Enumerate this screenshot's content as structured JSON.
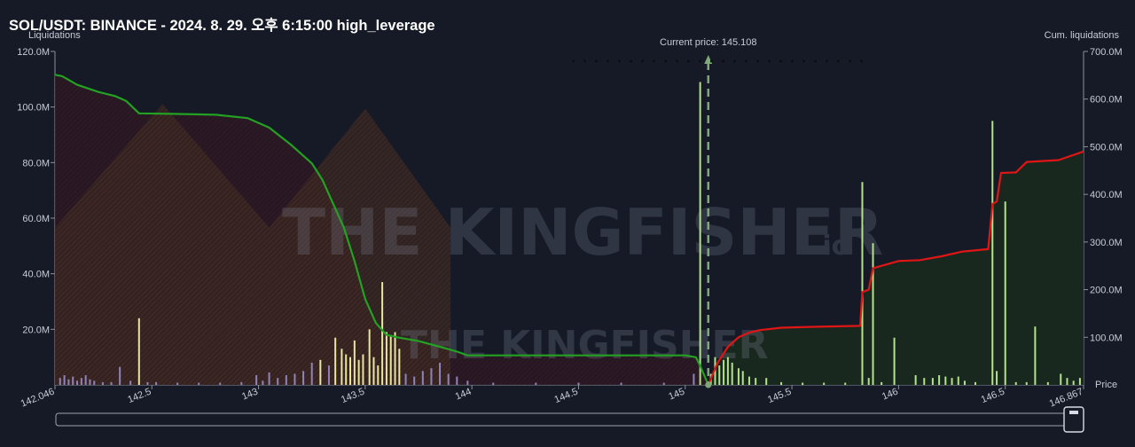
{
  "title": "SOL/USDT: BINANCE - 2024. 8. 29. 오후 6:15:00 high_leverage",
  "watermark": {
    "main": "THE KINGFISHER",
    "suffix": ".io"
  },
  "colors": {
    "background": "#151a26",
    "cum_short_line": "#22a122",
    "cum_long_line": "#e01515",
    "bar_yellow": "#e6e6a0",
    "bar_purple": "#8e84b8",
    "bar_green": "#b4e28a",
    "current_price": "#7fa87a"
  },
  "chart_data": {
    "type": "bar",
    "title": "SOL/USDT: BINANCE - 2024. 8. 29. 오후 6:15:00 high_leverage",
    "xlabel": "Price",
    "ylabel_left": "Liquidations",
    "ylabel_right": "Cum. liquidations",
    "xlim": [
      142.046,
      146.867
    ],
    "x_ticks": [
      "142.046",
      "142.5",
      "143",
      "143.5",
      "144",
      "144.5",
      "145",
      "145.5",
      "146",
      "146.5",
      "146.867"
    ],
    "y_left_ticks": [
      "20.0M",
      "40.0M",
      "60.0M",
      "80.0M",
      "100.0M",
      "120.0M"
    ],
    "y_right_ticks": [
      "100.0M",
      "200.0M",
      "300.0M",
      "400.0M",
      "500.0M",
      "600.0M",
      "700.0M"
    ],
    "ylim_left": [
      0,
      120
    ],
    "ylim_right": [
      0,
      700
    ],
    "current_price": {
      "label": "Current price: 145.108",
      "value": 145.108
    },
    "grid": false,
    "bars": [
      {
        "x": 142.07,
        "value": 2.5,
        "color": "purple"
      },
      {
        "x": 142.09,
        "value": 3.5,
        "color": "purple"
      },
      {
        "x": 142.11,
        "value": 2.0,
        "color": "purple"
      },
      {
        "x": 142.13,
        "value": 3.0,
        "color": "purple"
      },
      {
        "x": 142.15,
        "value": 1.5,
        "color": "purple"
      },
      {
        "x": 142.17,
        "value": 2.5,
        "color": "purple"
      },
      {
        "x": 142.19,
        "value": 3.5,
        "color": "purple"
      },
      {
        "x": 142.21,
        "value": 2.0,
        "color": "purple"
      },
      {
        "x": 142.23,
        "value": 1.5,
        "color": "purple"
      },
      {
        "x": 142.27,
        "value": 1.0,
        "color": "purple"
      },
      {
        "x": 142.31,
        "value": 1.0,
        "color": "purple"
      },
      {
        "x": 142.35,
        "value": 6.5,
        "color": "purple"
      },
      {
        "x": 142.4,
        "value": 1.5,
        "color": "purple"
      },
      {
        "x": 142.44,
        "value": 24.0,
        "color": "yellow"
      },
      {
        "x": 142.48,
        "value": 1.0,
        "color": "purple"
      },
      {
        "x": 142.52,
        "value": 1.0,
        "color": "purple"
      },
      {
        "x": 142.62,
        "value": 0.8,
        "color": "purple"
      },
      {
        "x": 142.72,
        "value": 0.8,
        "color": "purple"
      },
      {
        "x": 142.82,
        "value": 0.8,
        "color": "purple"
      },
      {
        "x": 142.92,
        "value": 1.0,
        "color": "purple"
      },
      {
        "x": 142.99,
        "value": 3.5,
        "color": "purple"
      },
      {
        "x": 143.02,
        "value": 1.5,
        "color": "purple"
      },
      {
        "x": 143.05,
        "value": 4.5,
        "color": "purple"
      },
      {
        "x": 143.09,
        "value": 2.5,
        "color": "purple"
      },
      {
        "x": 143.13,
        "value": 3.5,
        "color": "purple"
      },
      {
        "x": 143.17,
        "value": 4.0,
        "color": "purple"
      },
      {
        "x": 143.21,
        "value": 5.0,
        "color": "purple"
      },
      {
        "x": 143.25,
        "value": 8.0,
        "color": "purple"
      },
      {
        "x": 143.29,
        "value": 9.0,
        "color": "yellow"
      },
      {
        "x": 143.33,
        "value": 7.0,
        "color": "purple"
      },
      {
        "x": 143.36,
        "value": 17.0,
        "color": "yellow"
      },
      {
        "x": 143.39,
        "value": 13.0,
        "color": "yellow"
      },
      {
        "x": 143.41,
        "value": 11.0,
        "color": "yellow"
      },
      {
        "x": 143.43,
        "value": 10.0,
        "color": "yellow"
      },
      {
        "x": 143.45,
        "value": 16.0,
        "color": "yellow"
      },
      {
        "x": 143.47,
        "value": 9.0,
        "color": "yellow"
      },
      {
        "x": 143.49,
        "value": 11.0,
        "color": "yellow"
      },
      {
        "x": 143.52,
        "value": 20.0,
        "color": "yellow"
      },
      {
        "x": 143.54,
        "value": 10.0,
        "color": "yellow"
      },
      {
        "x": 143.56,
        "value": 7.0,
        "color": "yellow"
      },
      {
        "x": 143.58,
        "value": 37.0,
        "color": "yellow"
      },
      {
        "x": 143.6,
        "value": 19.0,
        "color": "yellow"
      },
      {
        "x": 143.62,
        "value": 18.0,
        "color": "yellow"
      },
      {
        "x": 143.64,
        "value": 19.0,
        "color": "yellow"
      },
      {
        "x": 143.66,
        "value": 13.0,
        "color": "yellow"
      },
      {
        "x": 143.69,
        "value": 4.0,
        "color": "purple"
      },
      {
        "x": 143.73,
        "value": 3.0,
        "color": "purple"
      },
      {
        "x": 143.77,
        "value": 5.0,
        "color": "purple"
      },
      {
        "x": 143.81,
        "value": 6.0,
        "color": "purple"
      },
      {
        "x": 143.85,
        "value": 8.0,
        "color": "purple"
      },
      {
        "x": 143.89,
        "value": 4.0,
        "color": "purple"
      },
      {
        "x": 143.93,
        "value": 3.0,
        "color": "purple"
      },
      {
        "x": 143.98,
        "value": 1.5,
        "color": "purple"
      },
      {
        "x": 144.1,
        "value": 0.8,
        "color": "purple"
      },
      {
        "x": 144.3,
        "value": 0.8,
        "color": "purple"
      },
      {
        "x": 144.5,
        "value": 0.8,
        "color": "purple"
      },
      {
        "x": 144.7,
        "value": 0.8,
        "color": "purple"
      },
      {
        "x": 144.9,
        "value": 0.8,
        "color": "purple"
      },
      {
        "x": 145.04,
        "value": 4.0,
        "color": "purple"
      },
      {
        "x": 145.07,
        "value": 109.0,
        "color": "green"
      },
      {
        "x": 145.12,
        "value": 4.0,
        "color": "green"
      },
      {
        "x": 145.14,
        "value": 10.0,
        "color": "green"
      },
      {
        "x": 145.16,
        "value": 7.0,
        "color": "green"
      },
      {
        "x": 145.18,
        "value": 9.0,
        "color": "green"
      },
      {
        "x": 145.2,
        "value": 10.0,
        "color": "green"
      },
      {
        "x": 145.22,
        "value": 8.0,
        "color": "green"
      },
      {
        "x": 145.25,
        "value": 6.0,
        "color": "green"
      },
      {
        "x": 145.27,
        "value": 5.0,
        "color": "green"
      },
      {
        "x": 145.3,
        "value": 3.0,
        "color": "green"
      },
      {
        "x": 145.33,
        "value": 2.5,
        "color": "green"
      },
      {
        "x": 145.38,
        "value": 2.5,
        "color": "green"
      },
      {
        "x": 145.45,
        "value": 1.0,
        "color": "green"
      },
      {
        "x": 145.55,
        "value": 0.8,
        "color": "green"
      },
      {
        "x": 145.65,
        "value": 0.8,
        "color": "green"
      },
      {
        "x": 145.75,
        "value": 0.8,
        "color": "green"
      },
      {
        "x": 145.83,
        "value": 73.0,
        "color": "green"
      },
      {
        "x": 145.86,
        "value": 2.5,
        "color": "green"
      },
      {
        "x": 145.88,
        "value": 51.0,
        "color": "green"
      },
      {
        "x": 145.92,
        "value": 1.0,
        "color": "green"
      },
      {
        "x": 145.98,
        "value": 17.0,
        "color": "green"
      },
      {
        "x": 146.08,
        "value": 3.5,
        "color": "green"
      },
      {
        "x": 146.12,
        "value": 2.5,
        "color": "green"
      },
      {
        "x": 146.16,
        "value": 2.5,
        "color": "green"
      },
      {
        "x": 146.19,
        "value": 3.5,
        "color": "green"
      },
      {
        "x": 146.22,
        "value": 3.0,
        "color": "green"
      },
      {
        "x": 146.25,
        "value": 2.5,
        "color": "green"
      },
      {
        "x": 146.28,
        "value": 3.0,
        "color": "green"
      },
      {
        "x": 146.31,
        "value": 1.5,
        "color": "green"
      },
      {
        "x": 146.36,
        "value": 1.0,
        "color": "green"
      },
      {
        "x": 146.44,
        "value": 95.0,
        "color": "green"
      },
      {
        "x": 146.46,
        "value": 5.0,
        "color": "green"
      },
      {
        "x": 146.5,
        "value": 66.0,
        "color": "green"
      },
      {
        "x": 146.55,
        "value": 1.0,
        "color": "green"
      },
      {
        "x": 146.6,
        "value": 1.0,
        "color": "green"
      },
      {
        "x": 146.64,
        "value": 21.0,
        "color": "green"
      },
      {
        "x": 146.7,
        "value": 1.0,
        "color": "green"
      },
      {
        "x": 146.76,
        "value": 4.0,
        "color": "green"
      },
      {
        "x": 146.79,
        "value": 2.5,
        "color": "green"
      },
      {
        "x": 146.82,
        "value": 1.5,
        "color": "green"
      },
      {
        "x": 146.85,
        "value": 2.5,
        "color": "green"
      }
    ],
    "cum_short": {
      "x": [
        142.046,
        142.08,
        142.15,
        142.25,
        142.33,
        142.38,
        142.44,
        142.6,
        142.8,
        142.95,
        143.05,
        143.15,
        143.25,
        143.3,
        143.35,
        143.4,
        143.45,
        143.5,
        143.55,
        143.6,
        143.65,
        143.75,
        143.85,
        143.93,
        143.98,
        144.1,
        144.3,
        144.5,
        144.7,
        144.9,
        145.0,
        145.05,
        145.07,
        145.108
      ],
      "y": [
        651,
        648,
        630,
        615,
        606,
        596,
        570,
        569,
        567,
        560,
        540,
        505,
        465,
        430,
        380,
        330,
        260,
        180,
        130,
        105,
        100,
        92,
        80,
        70,
        62,
        62,
        62,
        62,
        62,
        62,
        62,
        58,
        40,
        0
      ]
    },
    "cum_long": {
      "x": [
        145.108,
        145.15,
        145.2,
        145.25,
        145.3,
        145.35,
        145.45,
        145.6,
        145.82,
        145.83,
        145.86,
        145.88,
        146.0,
        146.1,
        146.2,
        146.3,
        146.42,
        146.44,
        146.46,
        146.48,
        146.55,
        146.6,
        146.75,
        146.867
      ],
      "y": [
        0,
        45,
        80,
        100,
        110,
        115,
        120,
        122,
        124,
        195,
        200,
        245,
        260,
        262,
        270,
        280,
        285,
        380,
        385,
        445,
        446,
        468,
        472,
        490
      ]
    }
  }
}
